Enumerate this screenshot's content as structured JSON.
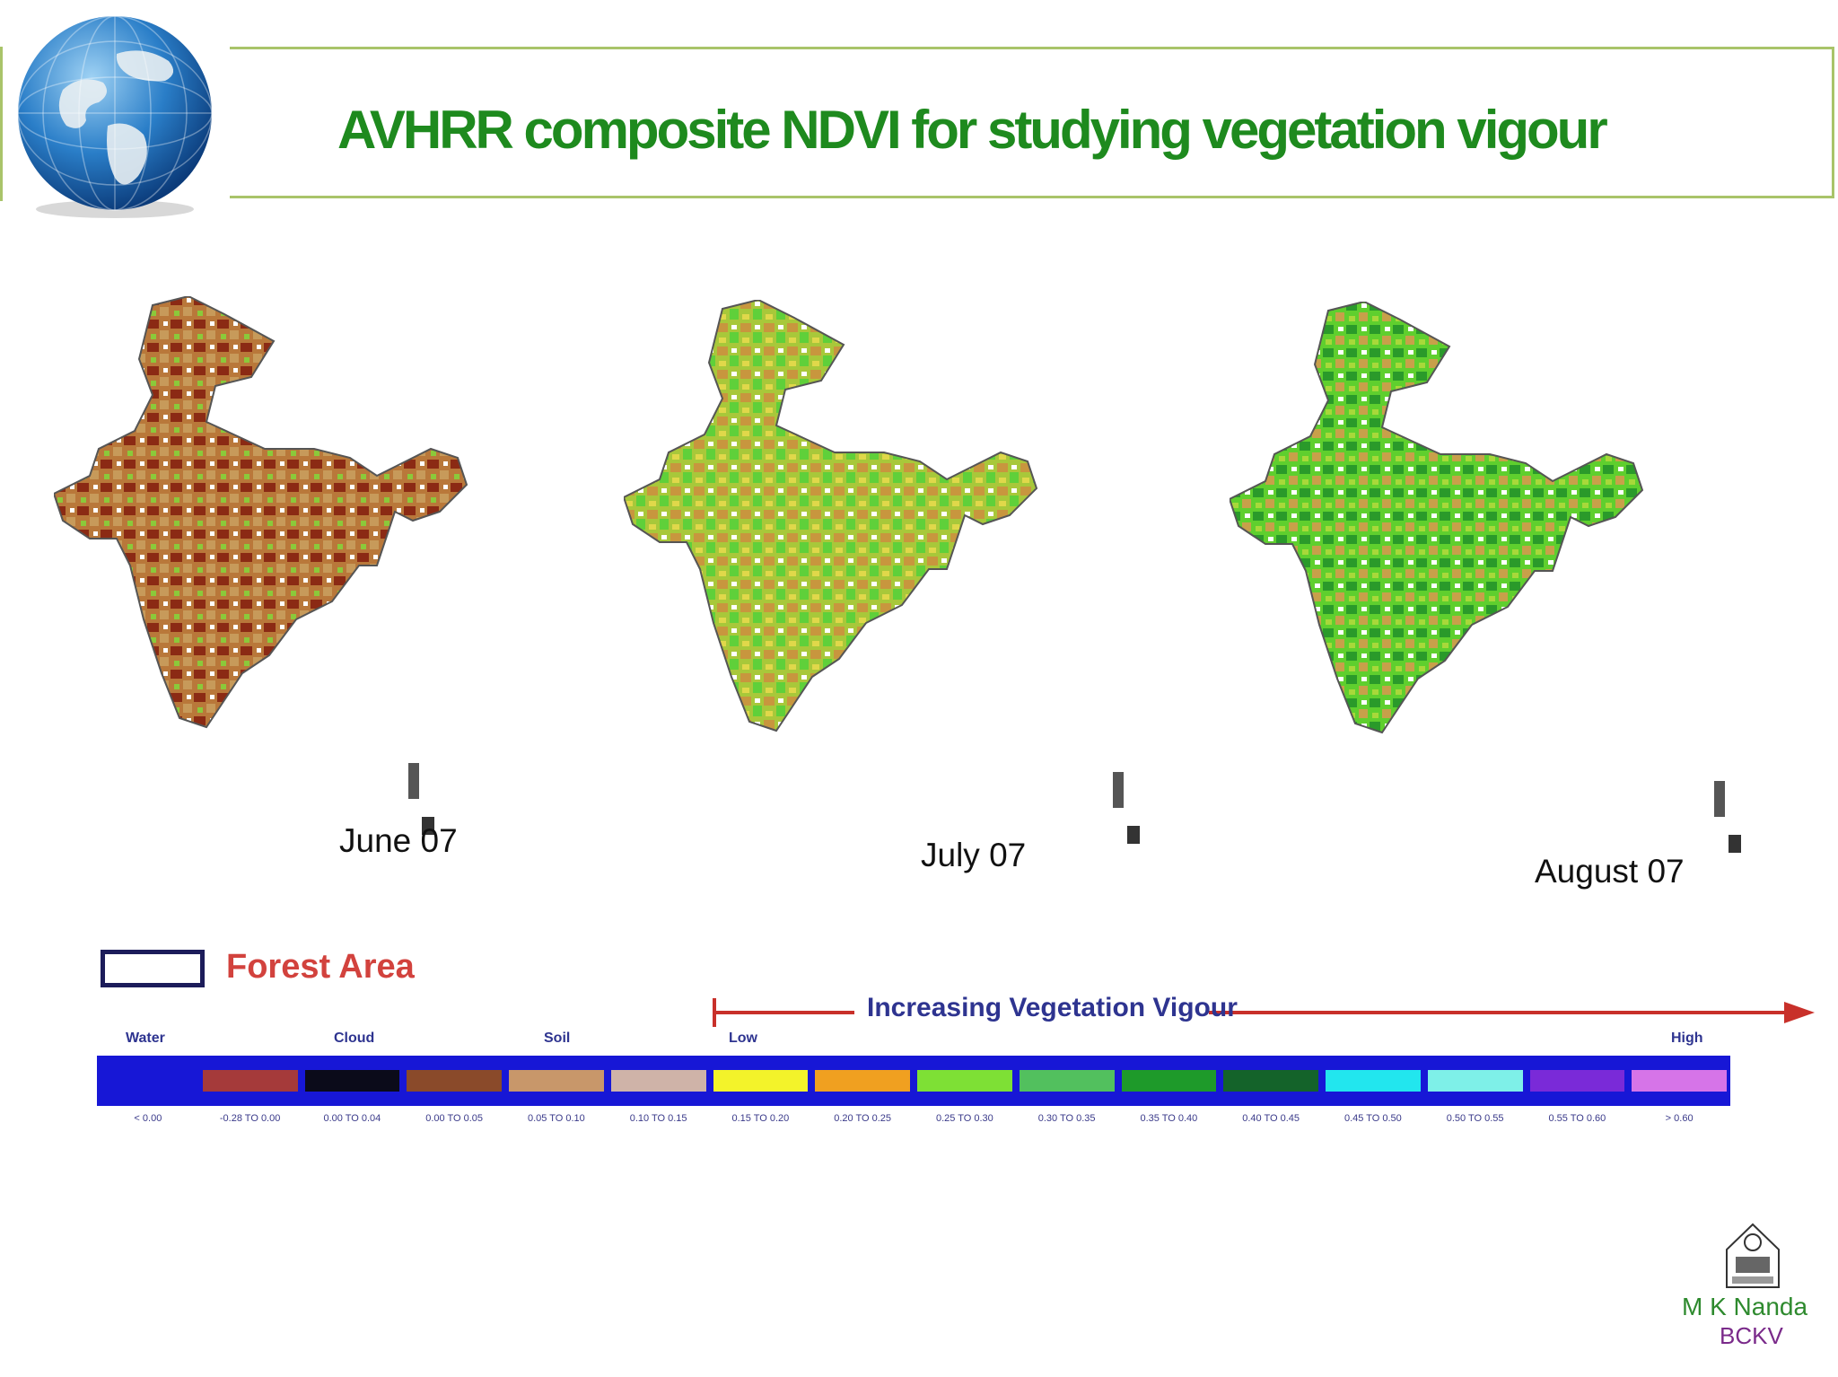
{
  "slide": {
    "title": "AVHRR composite NDVI for studying vegetation vigour",
    "colors": {
      "title": "#1e8a1e",
      "frame": "#a9c46a"
    }
  },
  "maps": [
    {
      "label": "June 07"
    },
    {
      "label": "July 07"
    },
    {
      "label": "August 07"
    }
  ],
  "legend": {
    "forest_label": "Forest Area",
    "vigour_label": "Increasing Vegetation Vigour",
    "categories": {
      "water": "Water",
      "cloud": "Cloud",
      "soil": "Soil",
      "low": "Low",
      "high": "High"
    },
    "swatches": [
      {
        "color": "#1515d0",
        "range": "< 0.00"
      },
      {
        "color": "#a53a3a",
        "range": "-0.28 TO 0.00"
      },
      {
        "color": "#0b0b1a",
        "range": "0.00 TO 0.04"
      },
      {
        "color": "#8a4a2a",
        "range": "0.00 TO 0.05"
      },
      {
        "color": "#c8976a",
        "range": "0.05 TO 0.10"
      },
      {
        "color": "#cfb3a8",
        "range": "0.10 TO 0.15"
      },
      {
        "color": "#f3f32a",
        "range": "0.15 TO 0.20"
      },
      {
        "color": "#f0a020",
        "range": "0.20 TO 0.25"
      },
      {
        "color": "#7ee035",
        "range": "0.25 TO 0.30"
      },
      {
        "color": "#52c05e",
        "range": "0.30 TO 0.35"
      },
      {
        "color": "#1e9a2a",
        "range": "0.35 TO 0.40"
      },
      {
        "color": "#14632a",
        "range": "0.40 TO 0.45"
      },
      {
        "color": "#22e6ee",
        "range": "0.45 TO 0.50"
      },
      {
        "color": "#7ef0e8",
        "range": "0.50 TO 0.55"
      },
      {
        "color": "#7a2ad8",
        "range": "0.55 TO 0.60"
      },
      {
        "color": "#d674e8",
        "range": "> 0.60"
      }
    ]
  },
  "footer": {
    "author": "M K Nanda",
    "org": "BCKV"
  }
}
